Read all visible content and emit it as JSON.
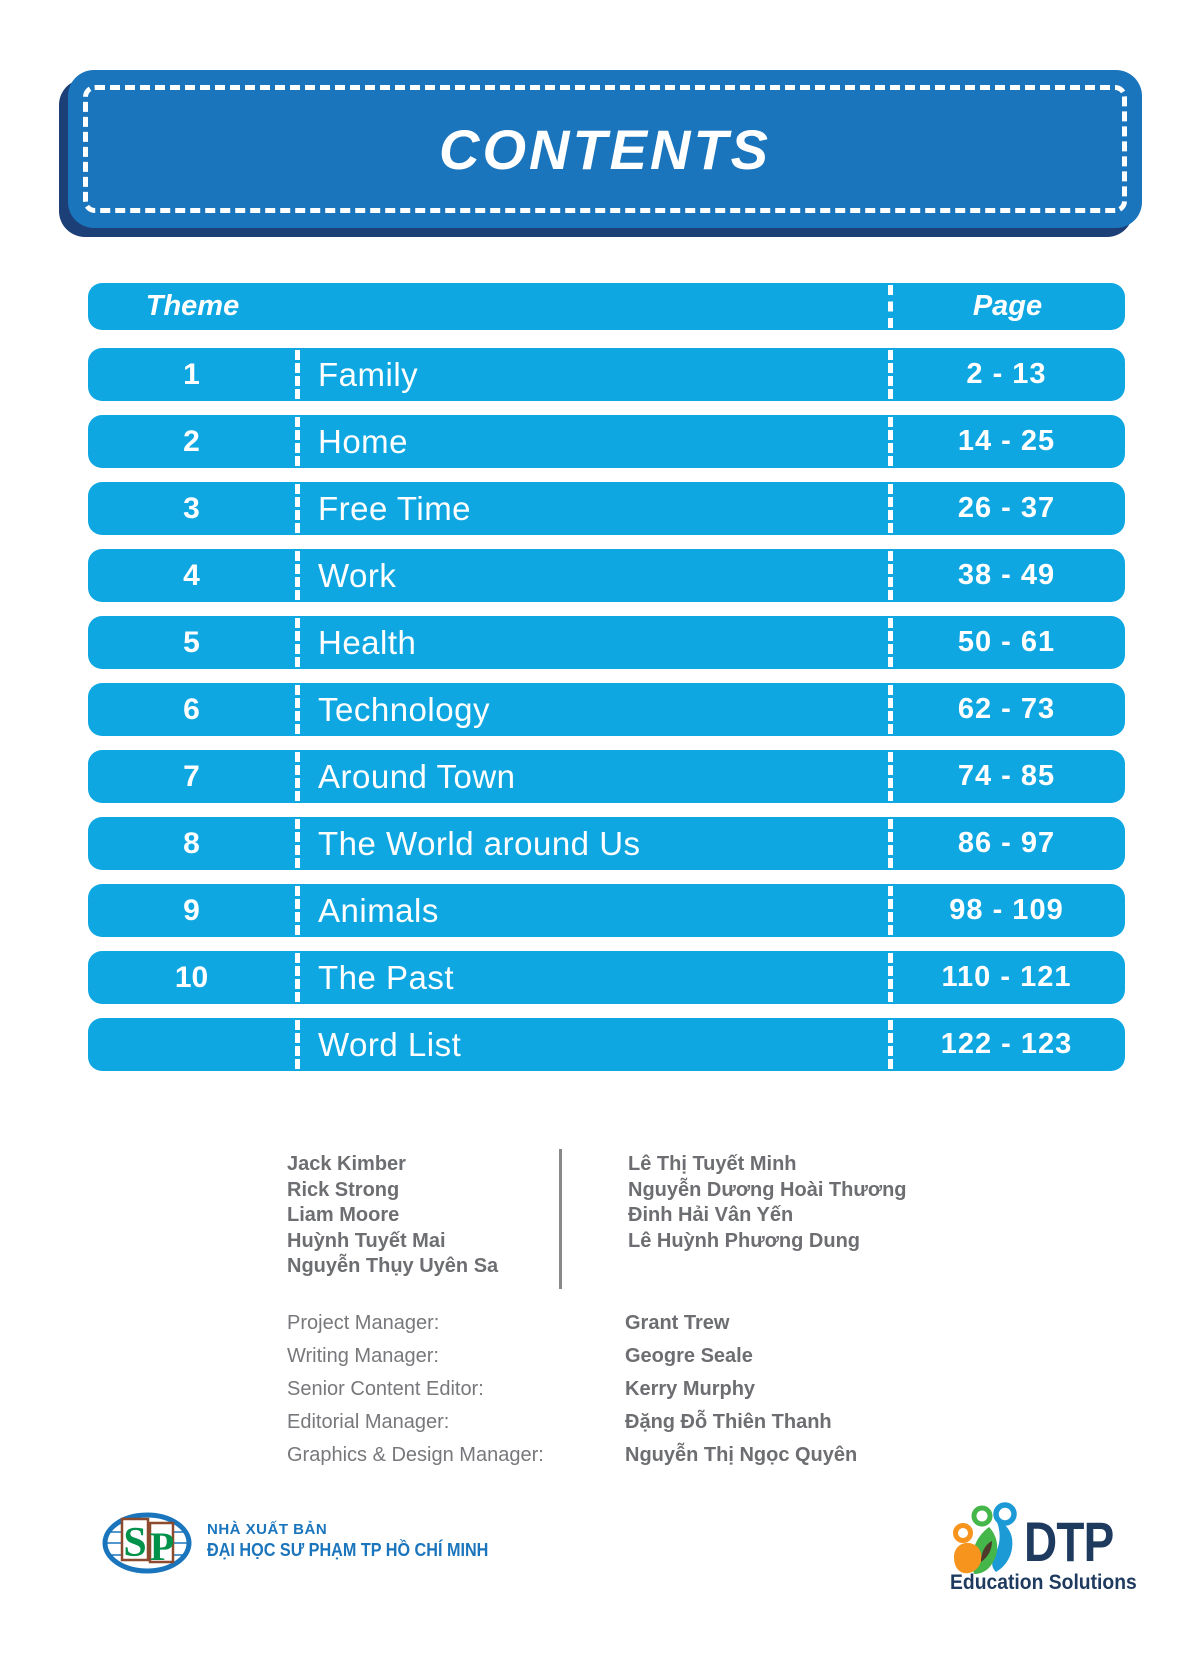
{
  "banner": {
    "title": "CONTENTS"
  },
  "table": {
    "theme_header": "Theme",
    "page_header": "Page",
    "rows": [
      {
        "num": "1",
        "theme": "Family",
        "pages": "2 - 13"
      },
      {
        "num": "2",
        "theme": "Home",
        "pages": "14 - 25"
      },
      {
        "num": "3",
        "theme": "Free Time",
        "pages": "26 - 37"
      },
      {
        "num": "4",
        "theme": "Work",
        "pages": "38 - 49"
      },
      {
        "num": "5",
        "theme": "Health",
        "pages": "50 - 61"
      },
      {
        "num": "6",
        "theme": "Technology",
        "pages": "62 - 73"
      },
      {
        "num": "7",
        "theme": "Around Town",
        "pages": "74 - 85"
      },
      {
        "num": "8",
        "theme": "The World around Us",
        "pages": "86 - 97"
      },
      {
        "num": "9",
        "theme": "Animals",
        "pages": "98 - 109"
      },
      {
        "num": "10",
        "theme": "The Past",
        "pages": "110 - 121"
      },
      {
        "num": "",
        "theme": "Word List",
        "pages": "122 - 123"
      }
    ]
  },
  "credits": {
    "authors_left": [
      "Jack Kimber",
      "Rick Strong",
      "Liam Moore",
      "Huỳnh Tuyết Mai",
      "Nguyễn Thụy Uyên Sa"
    ],
    "authors_right": [
      "Lê Thị Tuyết Minh",
      "Nguyễn Dương Hoài Thương",
      "Đinh Hải Vân Yến",
      "Lê Huỳnh Phương Dung"
    ],
    "roles": [
      {
        "role": "Project Manager:",
        "name": "Grant Trew"
      },
      {
        "role": "Writing Manager:",
        "name": "Geogre Seale"
      },
      {
        "role": "Senior Content Editor:",
        "name": "Kerry Murphy"
      },
      {
        "role": "Editorial Manager:",
        "name": "Đặng Đỗ Thiên Thanh"
      },
      {
        "role": "Graphics & Design Manager:",
        "name": "Nguyễn Thị Ngọc Quyên"
      }
    ]
  },
  "footer": {
    "sp_letter_s": "S",
    "sp_letter_p": "P",
    "publisher_line1": "NHÀ XUẤT BẢN",
    "publisher_line2": "ĐẠI HỌC SƯ PHẠM TP HỒ CHÍ MINH",
    "dtp_name": "DTP",
    "dtp_subtitle": "Education Solutions"
  },
  "colors": {
    "row_blue": "#0FA7E2",
    "banner_blue": "#1B75BC",
    "banner_shadow": "#1B3F76",
    "credit_gray": "#6D6E71",
    "navy": "#1E3A5F",
    "sp_green": "#00924A",
    "dtp_orange": "#F7941E",
    "dtp_green": "#45B649"
  }
}
